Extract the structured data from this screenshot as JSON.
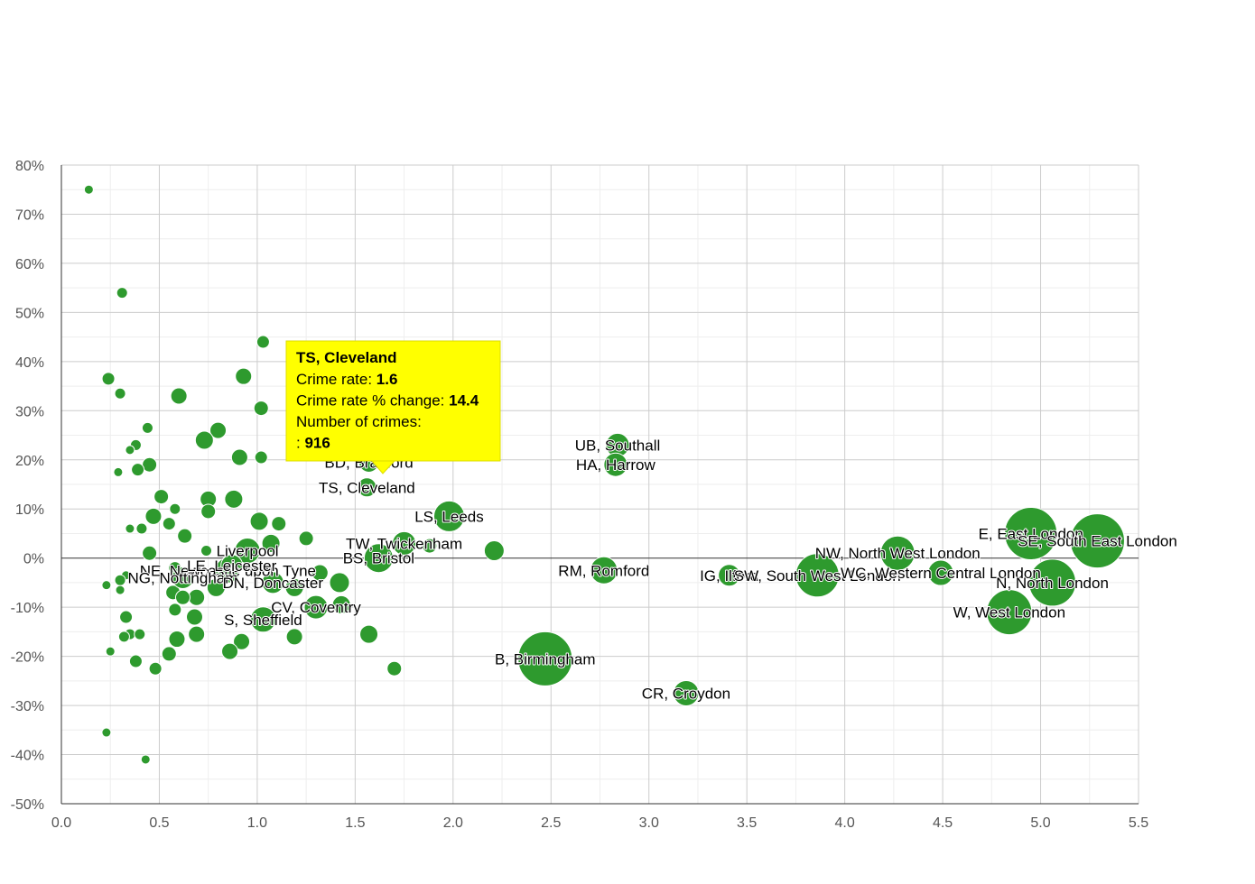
{
  "chart_data": {
    "type": "scatter",
    "variant": "bubble",
    "xlim": [
      0,
      5.5
    ],
    "ylim": [
      -50,
      80
    ],
    "x_ticks": [
      "0.0",
      "0.5",
      "1.0",
      "1.5",
      "2.0",
      "2.5",
      "3.0",
      "3.5",
      "4.0",
      "4.5",
      "5.0",
      "5.5"
    ],
    "y_ticks": [
      "80%",
      "70%",
      "60%",
      "50%",
      "40%",
      "30%",
      "20%",
      "10%",
      "0%",
      "-10%",
      "-20%",
      "-30%",
      "-40%",
      "-50%"
    ],
    "grid": true,
    "bubble_color": "#2e9a2e",
    "tooltip_color": "#ffff00",
    "labeled_points": [
      {
        "label": "TS, Cleveland",
        "x": 1.56,
        "y": 14.4,
        "r": 11
      },
      {
        "label": "BD, Bradford",
        "x": 1.57,
        "y": 19.5,
        "r": 11
      },
      {
        "label": "UB, Southall",
        "x": 2.84,
        "y": 23,
        "r": 13
      },
      {
        "label": "HA, Harrow",
        "x": 2.83,
        "y": 19,
        "r": 13
      },
      {
        "label": "LS, Leeds",
        "x": 1.98,
        "y": 8.5,
        "r": 17
      },
      {
        "label": "TW, Twickenham",
        "x": 1.75,
        "y": 3,
        "r": 13
      },
      {
        "label": "BS, Bristol",
        "x": 1.62,
        "y": 0,
        "r": 16
      },
      {
        "label": "Liverpool",
        "x": 0.95,
        "y": 1.5,
        "r": 14
      },
      {
        "label": "NE, Newcastle upon Tyne",
        "x": 0.85,
        "y": -2.5,
        "r": 14
      },
      {
        "label": "LE, Leicester",
        "x": 0.87,
        "y": -1.5,
        "r": 12
      },
      {
        "label": "NG, Nottingham",
        "x": 0.62,
        "y": -4,
        "r": 12
      },
      {
        "label": "DN, Doncaster",
        "x": 1.08,
        "y": -5,
        "r": 12
      },
      {
        "label": "CV, Coventry",
        "x": 1.3,
        "y": -10,
        "r": 13
      },
      {
        "label": "S, Sheffield",
        "x": 1.03,
        "y": -12.5,
        "r": 14
      },
      {
        "label": "B, Birmingham",
        "x": 2.47,
        "y": -20.5,
        "r": 30
      },
      {
        "label": "CR, Croydon",
        "x": 3.19,
        "y": -27.5,
        "r": 14
      },
      {
        "label": "RM, Romford",
        "x": 2.77,
        "y": -2.5,
        "r": 15
      },
      {
        "label": "IG, Ilford",
        "x": 3.41,
        "y": -3.5,
        "r": 12
      },
      {
        "label": "SW, South West London",
        "x": 3.86,
        "y": -3.5,
        "r": 24
      },
      {
        "label": "NW, North West London",
        "x": 4.27,
        "y": 1,
        "r": 19
      },
      {
        "label": "WC, Western Central London",
        "x": 4.49,
        "y": -3,
        "r": 14
      },
      {
        "label": "E, East London",
        "x": 4.95,
        "y": 5,
        "r": 29
      },
      {
        "label": "SE, South East London",
        "x": 5.29,
        "y": 3.5,
        "r": 30
      },
      {
        "label": "N, North London",
        "x": 5.06,
        "y": -5,
        "r": 26
      },
      {
        "label": "W, West London",
        "x": 4.84,
        "y": -11,
        "r": 25
      }
    ],
    "other_points": [
      {
        "x": 0.14,
        "y": 75,
        "r": 5
      },
      {
        "x": 0.31,
        "y": 54,
        "r": 6
      },
      {
        "x": 1.03,
        "y": 44,
        "r": 7
      },
      {
        "x": 0.24,
        "y": 36.5,
        "r": 7
      },
      {
        "x": 0.93,
        "y": 37,
        "r": 9
      },
      {
        "x": 0.3,
        "y": 33.5,
        "r": 6
      },
      {
        "x": 0.6,
        "y": 33,
        "r": 9
      },
      {
        "x": 1.02,
        "y": 30.5,
        "r": 8
      },
      {
        "x": 0.44,
        "y": 26.5,
        "r": 6
      },
      {
        "x": 0.8,
        "y": 26,
        "r": 9
      },
      {
        "x": 0.73,
        "y": 24,
        "r": 10
      },
      {
        "x": 0.38,
        "y": 23,
        "r": 6
      },
      {
        "x": 0.35,
        "y": 22,
        "r": 5
      },
      {
        "x": 0.91,
        "y": 20.5,
        "r": 9
      },
      {
        "x": 1.02,
        "y": 20.5,
        "r": 7
      },
      {
        "x": 0.45,
        "y": 19,
        "r": 8
      },
      {
        "x": 0.39,
        "y": 18,
        "r": 7
      },
      {
        "x": 0.29,
        "y": 17.5,
        "r": 5
      },
      {
        "x": 0.51,
        "y": 12.5,
        "r": 8
      },
      {
        "x": 0.75,
        "y": 12,
        "r": 9
      },
      {
        "x": 0.88,
        "y": 12,
        "r": 10
      },
      {
        "x": 0.58,
        "y": 10,
        "r": 6
      },
      {
        "x": 0.75,
        "y": 9.5,
        "r": 8
      },
      {
        "x": 0.47,
        "y": 8.5,
        "r": 9
      },
      {
        "x": 1.01,
        "y": 7.5,
        "r": 10
      },
      {
        "x": 1.11,
        "y": 7,
        "r": 8
      },
      {
        "x": 0.55,
        "y": 7,
        "r": 7
      },
      {
        "x": 0.41,
        "y": 6,
        "r": 6
      },
      {
        "x": 0.35,
        "y": 6,
        "r": 5
      },
      {
        "x": 0.63,
        "y": 4.5,
        "r": 8
      },
      {
        "x": 1.25,
        "y": 4,
        "r": 8
      },
      {
        "x": 1.07,
        "y": 3,
        "r": 10
      },
      {
        "x": 2.21,
        "y": 1.5,
        "r": 11
      },
      {
        "x": 1.88,
        "y": 2.5,
        "r": 8
      },
      {
        "x": 0.45,
        "y": 1,
        "r": 8
      },
      {
        "x": 0.74,
        "y": 1.5,
        "r": 6
      },
      {
        "x": 0.33,
        "y": -3.5,
        "r": 5
      },
      {
        "x": 0.3,
        "y": -4.5,
        "r": 6
      },
      {
        "x": 0.23,
        "y": -5.5,
        "r": 5
      },
      {
        "x": 0.3,
        "y": -6.5,
        "r": 5
      },
      {
        "x": 0.58,
        "y": -2,
        "r": 7
      },
      {
        "x": 0.79,
        "y": -6,
        "r": 10
      },
      {
        "x": 0.57,
        "y": -7,
        "r": 8
      },
      {
        "x": 0.69,
        "y": -8,
        "r": 9
      },
      {
        "x": 0.62,
        "y": -8,
        "r": 8
      },
      {
        "x": 1.32,
        "y": -3,
        "r": 9
      },
      {
        "x": 1.42,
        "y": -5,
        "r": 11
      },
      {
        "x": 1.19,
        "y": -6,
        "r": 10
      },
      {
        "x": 1.43,
        "y": -9.5,
        "r": 10
      },
      {
        "x": 0.58,
        "y": -10.5,
        "r": 7
      },
      {
        "x": 0.68,
        "y": -12,
        "r": 9
      },
      {
        "x": 0.33,
        "y": -12,
        "r": 7
      },
      {
        "x": 0.35,
        "y": -15.5,
        "r": 6
      },
      {
        "x": 0.4,
        "y": -15.5,
        "r": 6
      },
      {
        "x": 0.32,
        "y": -16,
        "r": 6
      },
      {
        "x": 0.59,
        "y": -16.5,
        "r": 9
      },
      {
        "x": 0.69,
        "y": -15.5,
        "r": 9
      },
      {
        "x": 0.92,
        "y": -17,
        "r": 9
      },
      {
        "x": 1.19,
        "y": -16,
        "r": 9
      },
      {
        "x": 1.57,
        "y": -15.5,
        "r": 10
      },
      {
        "x": 0.25,
        "y": -19,
        "r": 5
      },
      {
        "x": 0.55,
        "y": -19.5,
        "r": 8
      },
      {
        "x": 0.86,
        "y": -19,
        "r": 9
      },
      {
        "x": 0.38,
        "y": -21,
        "r": 7
      },
      {
        "x": 0.48,
        "y": -22.5,
        "r": 7
      },
      {
        "x": 1.7,
        "y": -22.5,
        "r": 8
      },
      {
        "x": 0.23,
        "y": -35.5,
        "r": 5
      },
      {
        "x": 0.43,
        "y": -41,
        "r": 5
      }
    ],
    "tooltip": {
      "title": "TS, Cleveland",
      "lines": [
        {
          "label": "Crime rate:",
          "value": "1.6"
        },
        {
          "label": "Crime rate % change:",
          "value": "14.4"
        },
        {
          "label": "Number of crimes:",
          "value": ""
        },
        {
          "label": ":",
          "value": "916"
        }
      ]
    }
  }
}
